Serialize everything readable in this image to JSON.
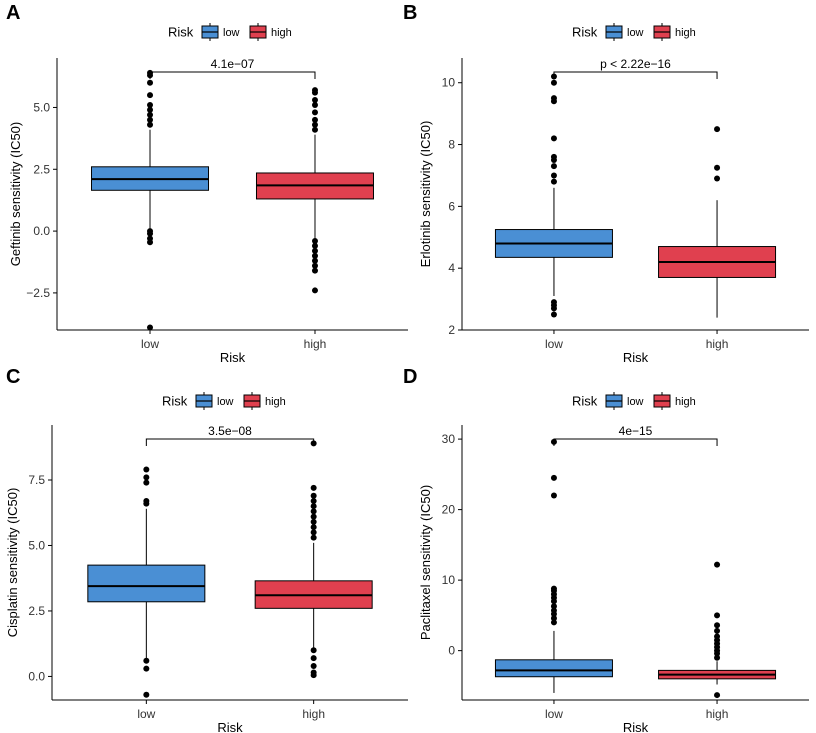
{
  "colors": {
    "low": "#4a8fd4",
    "high": "#e0404f",
    "axis": "#000000",
    "point": "#000000"
  },
  "legend": {
    "title": "Risk",
    "labels": [
      "low",
      "high"
    ]
  },
  "chart_data": [
    {
      "type": "boxplot",
      "panel": "A",
      "xlabel": "Risk",
      "ylabel": "Geftinib sensitivity (IC50)",
      "categories": [
        "low",
        "high"
      ],
      "ylim": [
        -4.0,
        7.0
      ],
      "yticks": [
        -2.5,
        0.0,
        2.5,
        5.0
      ],
      "ytick_labels": [
        "−2.5",
        "0.0",
        "2.5",
        "5.0"
      ],
      "pvalue": "4.1e−07",
      "boxes": [
        {
          "name": "low",
          "q1": 1.65,
          "median": 2.1,
          "q3": 2.6,
          "whisker_low": 0.1,
          "whisker_high": 4.1,
          "outliers": [
            6.4,
            6.3,
            6.0,
            5.5,
            5.1,
            4.9,
            4.7,
            4.5,
            4.3,
            0.0,
            -0.1,
            -0.3,
            -0.45,
            -3.9
          ]
        },
        {
          "name": "high",
          "q1": 1.3,
          "median": 1.85,
          "q3": 2.35,
          "whisker_low": -0.3,
          "whisker_high": 3.9,
          "outliers": [
            5.7,
            5.6,
            5.3,
            5.1,
            4.8,
            4.5,
            4.3,
            4.1,
            -0.4,
            -0.6,
            -0.8,
            -1.0,
            -1.2,
            -1.4,
            -1.6,
            -2.4
          ]
        }
      ]
    },
    {
      "type": "boxplot",
      "panel": "B",
      "xlabel": "Risk",
      "ylabel": "Erlotinib sensitivity (IC50)",
      "categories": [
        "low",
        "high"
      ],
      "ylim": [
        2.0,
        10.8
      ],
      "yticks": [
        2,
        4,
        6,
        8,
        10
      ],
      "ytick_labels": [
        "2",
        "4",
        "6",
        "8",
        "10"
      ],
      "pvalue": "p < 2.22e−16",
      "boxes": [
        {
          "name": "low",
          "q1": 4.35,
          "median": 4.8,
          "q3": 5.25,
          "whisker_low": 3.1,
          "whisker_high": 6.6,
          "outliers": [
            10.2,
            10.0,
            9.5,
            9.4,
            8.2,
            7.6,
            7.5,
            7.3,
            7.0,
            6.8,
            2.9,
            2.8,
            2.7,
            2.5
          ]
        },
        {
          "name": "high",
          "q1": 3.7,
          "median": 4.2,
          "q3": 4.7,
          "whisker_low": 2.4,
          "whisker_high": 6.2,
          "outliers": [
            8.5,
            7.25,
            6.9
          ]
        }
      ]
    },
    {
      "type": "boxplot",
      "panel": "C",
      "xlabel": "Risk",
      "ylabel": "Cisplatin sensitivity (IC50)",
      "categories": [
        "low",
        "high"
      ],
      "ylim": [
        -0.9,
        9.6
      ],
      "yticks": [
        0.0,
        2.5,
        5.0,
        7.5
      ],
      "ytick_labels": [
        "0.0",
        "2.5",
        "5.0",
        "7.5"
      ],
      "pvalue": "3.5e−08",
      "boxes": [
        {
          "name": "low",
          "q1": 2.85,
          "median": 3.45,
          "q3": 4.25,
          "whisker_low": 0.6,
          "whisker_high": 6.4,
          "outliers": [
            7.9,
            7.6,
            7.4,
            6.7,
            6.6,
            0.6,
            0.3,
            -0.7
          ]
        },
        {
          "name": "high",
          "q1": 2.6,
          "median": 3.1,
          "q3": 3.65,
          "whisker_low": 1.0,
          "whisker_high": 5.1,
          "outliers": [
            8.9,
            7.2,
            6.9,
            6.7,
            6.5,
            6.3,
            6.1,
            5.9,
            5.7,
            5.5,
            5.3,
            1.0,
            0.7,
            0.4,
            0.15,
            0.05
          ]
        }
      ]
    },
    {
      "type": "boxplot",
      "panel": "D",
      "xlabel": "Risk",
      "ylabel": "Paclitaxel sensitivity (IC50)",
      "categories": [
        "low",
        "high"
      ],
      "ylim": [
        -7.0,
        32.0
      ],
      "yticks": [
        0,
        10,
        20,
        30
      ],
      "ytick_labels": [
        "0",
        "10",
        "20",
        "30"
      ],
      "pvalue": "4e−15",
      "boxes": [
        {
          "name": "low",
          "q1": -3.7,
          "median": -2.8,
          "q3": -1.3,
          "whisker_low": -6.0,
          "whisker_high": 2.8,
          "outliers": [
            29.6,
            24.5,
            22.0,
            8.8,
            8.5,
            8.0,
            7.5,
            7.0,
            6.3,
            5.7,
            5.2,
            4.6,
            4.0
          ]
        },
        {
          "name": "high",
          "q1": -4.0,
          "median": -3.4,
          "q3": -2.8,
          "whisker_low": -4.8,
          "whisker_high": -1.5,
          "outliers": [
            12.2,
            5.0,
            3.6,
            2.8,
            2.0,
            1.5,
            1.0,
            0.5,
            0.0,
            -0.4,
            -1.0,
            -6.3
          ]
        }
      ]
    }
  ]
}
